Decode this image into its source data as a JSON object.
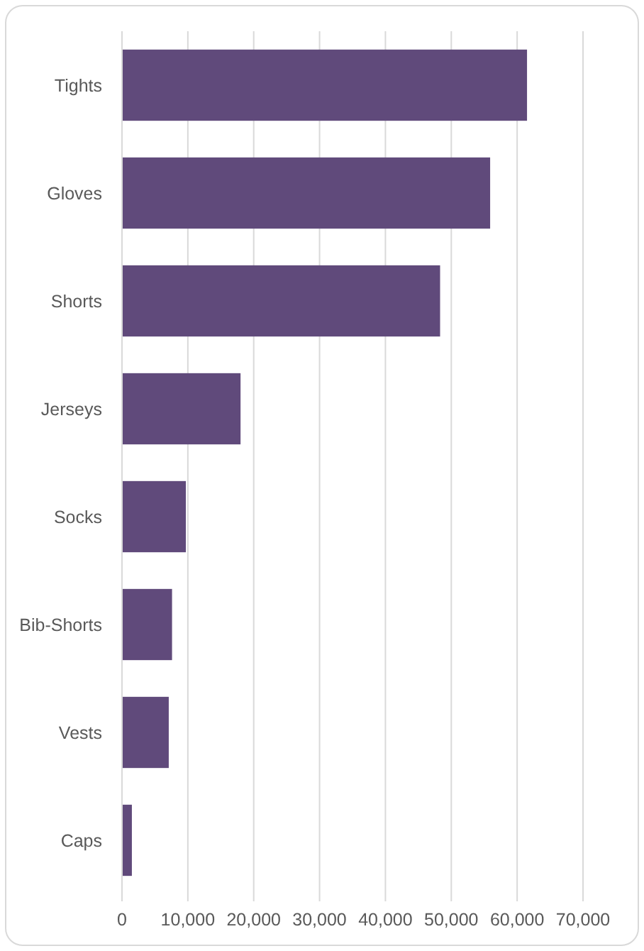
{
  "chart_data": {
    "type": "bar",
    "orientation": "horizontal",
    "categories": [
      "Tights",
      "Gloves",
      "Shorts",
      "Jerseys",
      "Socks",
      "Bib-Shorts",
      "Vests",
      "Caps"
    ],
    "values": [
      61500,
      55900,
      48300,
      18000,
      9700,
      7600,
      7100,
      1500
    ],
    "color": "#604a7b",
    "xlim": [
      0,
      70000
    ],
    "xticks": [
      0,
      {
        "value": 10000,
        "label": "10,000"
      },
      {
        "value": 20000,
        "label": "20,000"
      },
      {
        "value": 30000,
        "label": "30,000"
      },
      {
        "value": 40000,
        "label": "40,000"
      },
      {
        "value": 50000,
        "label": "50,000"
      },
      {
        "value": 60000,
        "label": "60,000"
      },
      {
        "value": 70000,
        "label": "70,000"
      }
    ],
    "grid": "x"
  }
}
